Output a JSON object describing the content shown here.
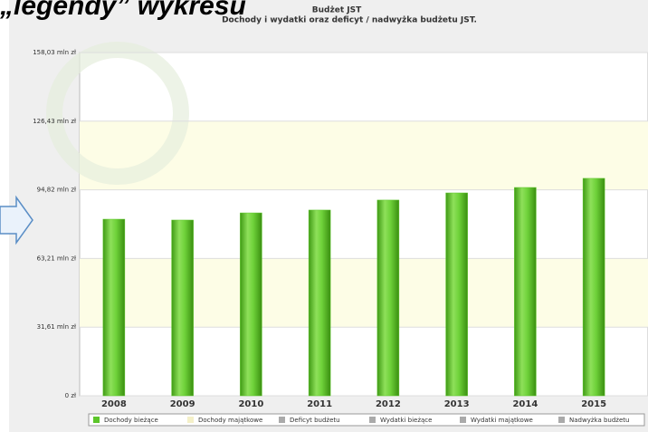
{
  "heading": "„legendy” wykresu",
  "chart_data": {
    "type": "bar",
    "title": "Budżet JST",
    "subtitle": "Dochody i wydatki oraz deficyt / nadwyżka budżetu JST.",
    "categories": [
      "2008",
      "2009",
      "2010",
      "2011",
      "2012",
      "2013",
      "2014",
      "2015"
    ],
    "series": [
      {
        "name": "Dochody bieżące",
        "color": "#5cc52a",
        "values": [
          81.3,
          80.9,
          84.2,
          85.5,
          90.1,
          93.4,
          95.9,
          100.1
        ]
      },
      {
        "name": "Dochody majątkowe",
        "color": "#f4f0c8"
      },
      {
        "name": "Deficyt budżetu",
        "color": "#aaaaaa"
      },
      {
        "name": "Wydatki bieżące",
        "color": "#aaaaaa"
      },
      {
        "name": "Wydatki majątkowe",
        "color": "#aaaaaa"
      },
      {
        "name": "Nadwyżka budżetu",
        "color": "#aaaaaa"
      }
    ],
    "ylim": [
      0,
      158.03
    ],
    "yticks": [
      {
        "value": 0,
        "label": "0 zł"
      },
      {
        "value": 31.61,
        "label": "31,61 mln zł"
      },
      {
        "value": 63.21,
        "label": "63,21 mln zł"
      },
      {
        "value": 94.82,
        "label": "94,82 mln zł"
      },
      {
        "value": 126.43,
        "label": "126,43 mln zł"
      },
      {
        "value": 158.03,
        "label": "158,03 mln zł"
      }
    ],
    "grid": true
  }
}
